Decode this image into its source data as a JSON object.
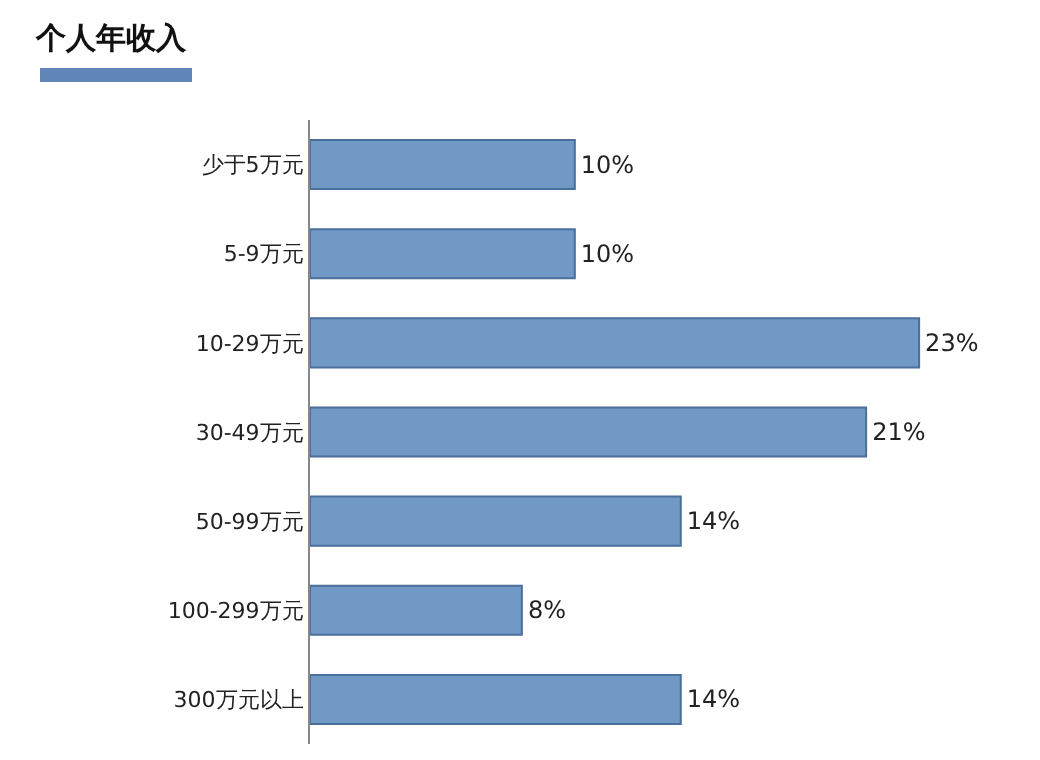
{
  "chart_data": {
    "type": "bar",
    "orientation": "horizontal",
    "title": "个人年收入",
    "categories": [
      "少于5万元",
      "5-9万元",
      "10-29万元",
      "30-49万元",
      "50-99万元",
      "100-299万元",
      "300万元以上"
    ],
    "values": [
      10,
      10,
      23,
      21,
      14,
      8,
      14
    ],
    "value_labels": [
      "10%",
      "10%",
      "23%",
      "21%",
      "14%",
      "8%",
      "14%"
    ],
    "color": "#7199c6",
    "tick_labels": "y",
    "grid": false,
    "legend": false
  }
}
